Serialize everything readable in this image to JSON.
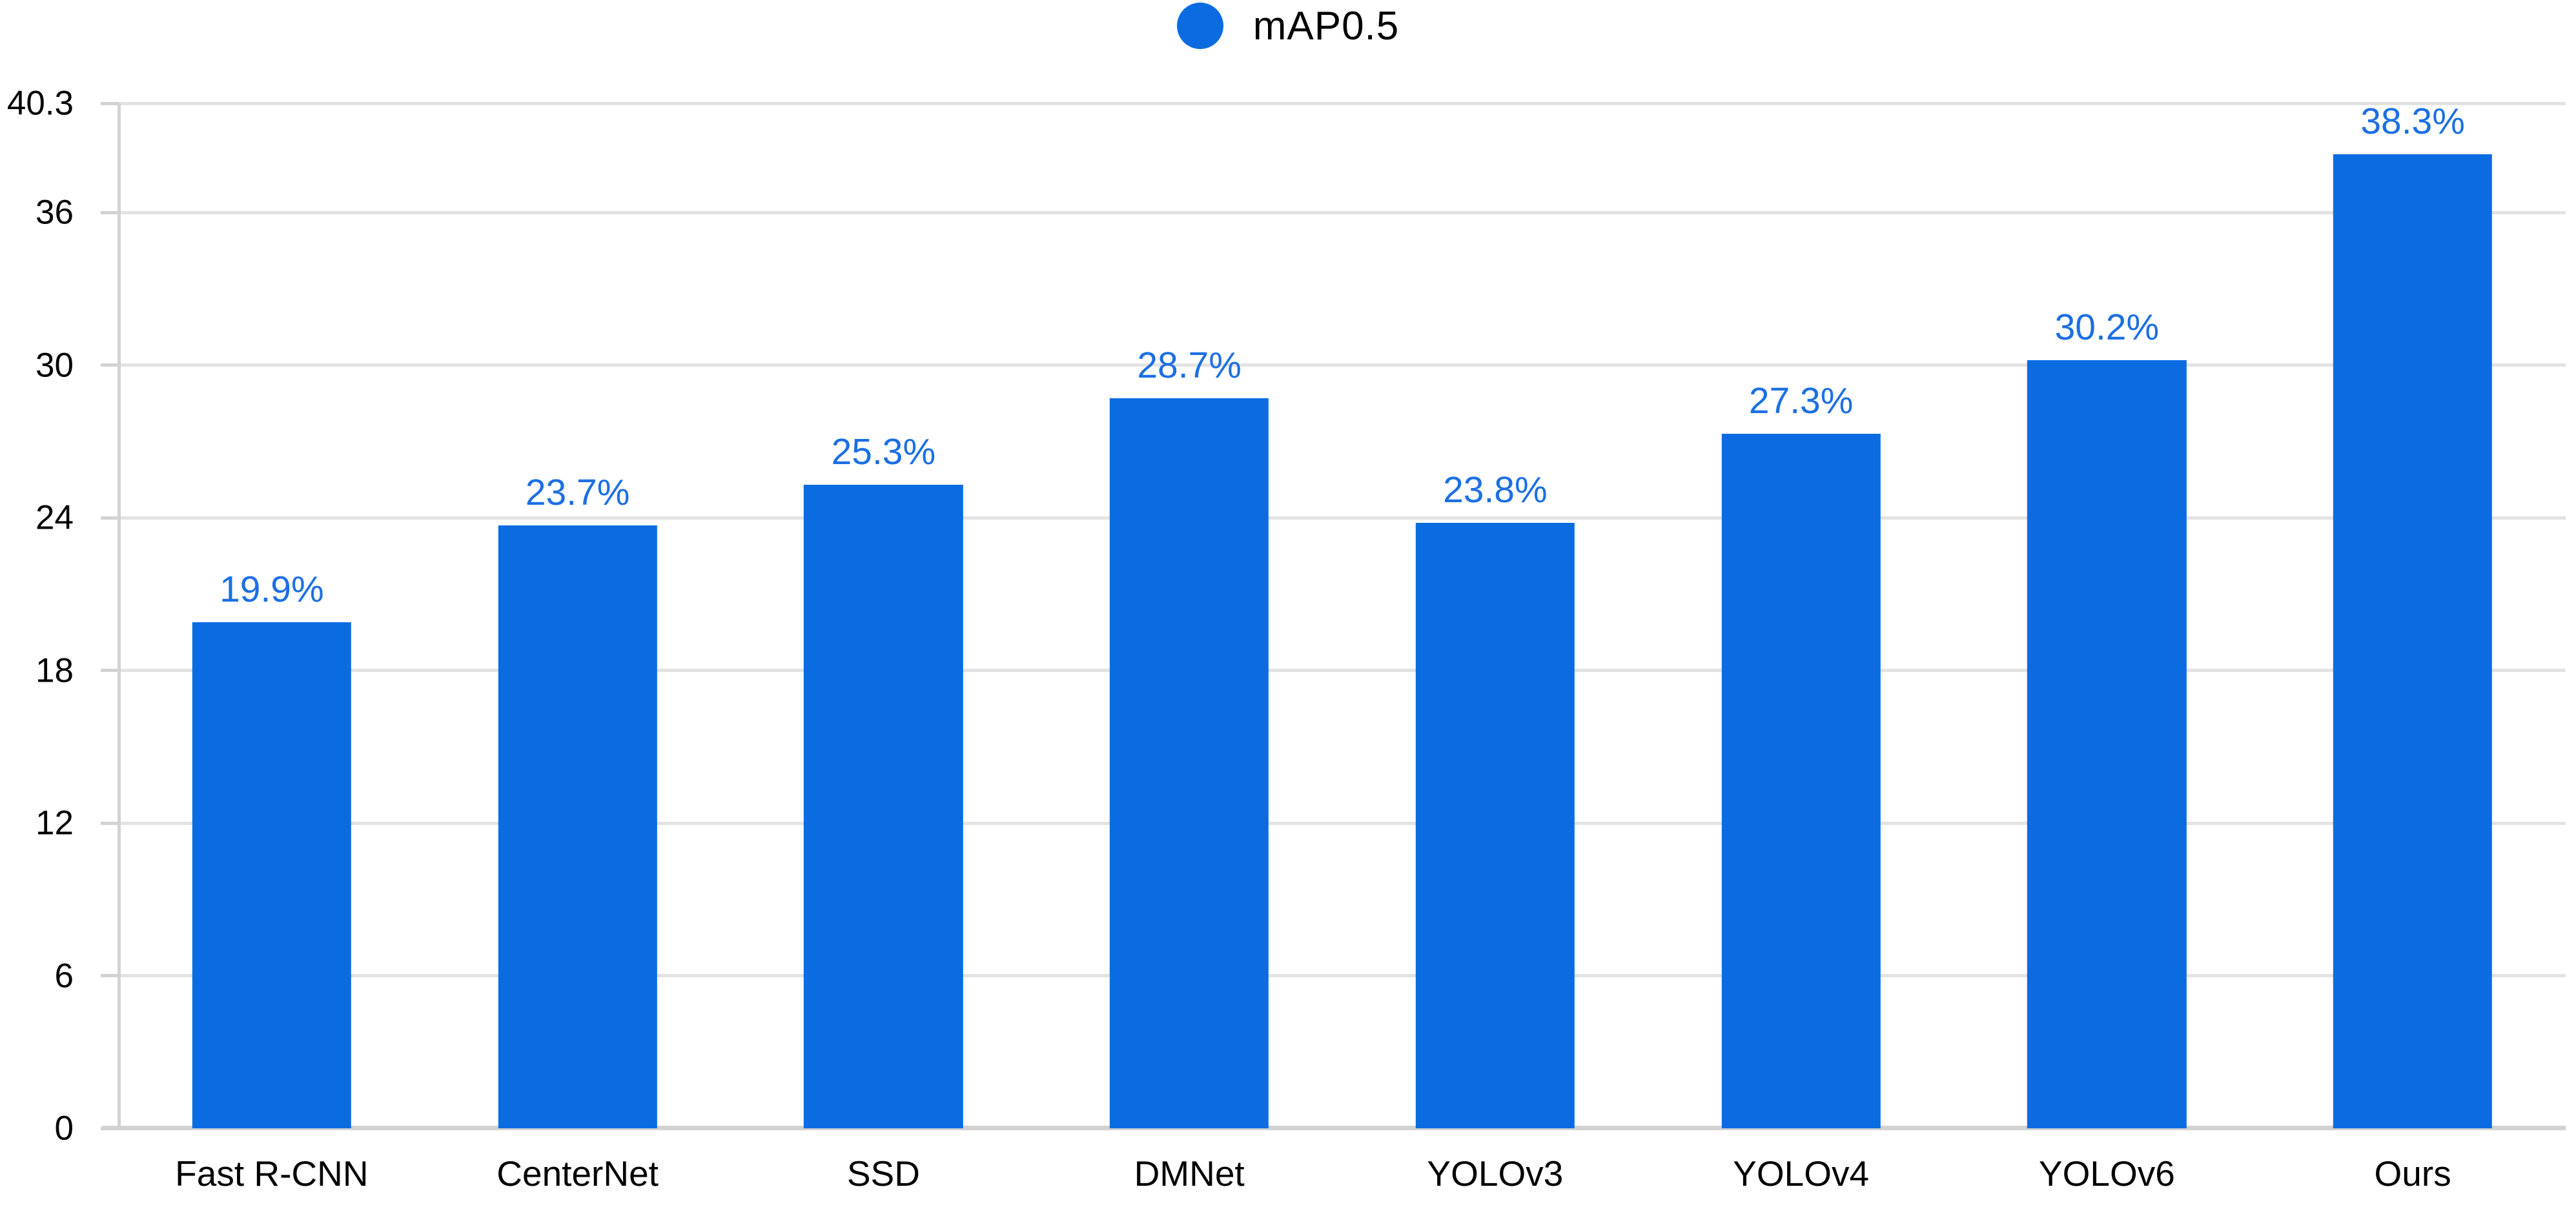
{
  "legend": {
    "label": "mAP0.5",
    "marker": "circle-icon",
    "position": "top-center"
  },
  "colors": {
    "bar": "#0b6ce2",
    "value_label": "#1c6fe3",
    "gridline": "#e2e2e2",
    "axis": "#d2d2d2",
    "text": "#000000",
    "background": "#ffffff"
  },
  "chart_data": {
    "type": "bar",
    "title": "",
    "series_name": "mAP0.5",
    "categories": [
      "Fast R-CNN",
      "CenterNet",
      "SSD",
      "DMNet",
      "YOLOv3",
      "YOLOv4",
      "YOLOv6",
      "Ours"
    ],
    "values": [
      19.9,
      23.7,
      25.3,
      28.7,
      23.8,
      27.3,
      30.2,
      38.3
    ],
    "value_labels": [
      "19.9%",
      "23.7%",
      "25.3%",
      "28.7%",
      "23.8%",
      "27.3%",
      "30.2%",
      "38.3%"
    ],
    "xlabel": "",
    "ylabel": "",
    "ylim": [
      0,
      40.3
    ],
    "yticks": [
      0,
      6,
      12,
      18,
      24,
      30,
      36,
      40.3
    ],
    "ytick_labels": [
      "0",
      "6",
      "12",
      "18",
      "24",
      "30",
      "36",
      "40.3"
    ],
    "grid": "horizontal-on",
    "legend_position": "top-center"
  }
}
